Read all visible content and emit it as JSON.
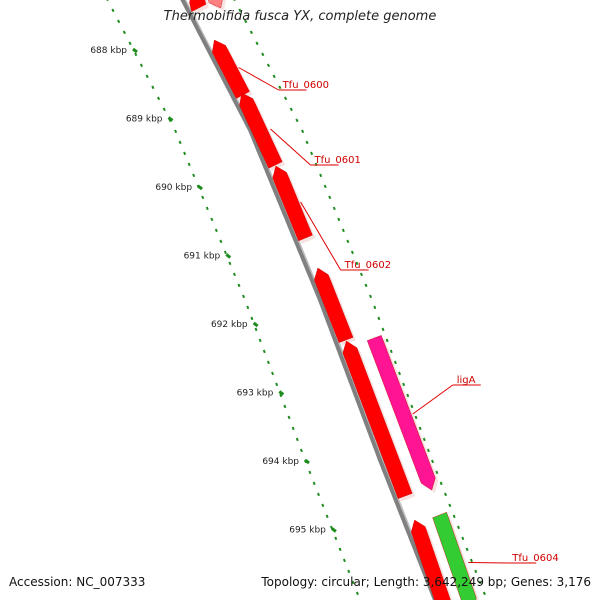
{
  "title": "Thermobifida fusca YX, complete genome",
  "scale": {
    "unit": "kbp",
    "ticks": [
      {
        "label": "688 kbp",
        "kbp": 688
      },
      {
        "label": "689 kbp",
        "kbp": 689
      },
      {
        "label": "690 kbp",
        "kbp": 690
      },
      {
        "label": "691 kbp",
        "kbp": 691
      },
      {
        "label": "692 kbp",
        "kbp": 692
      },
      {
        "label": "693 kbp",
        "kbp": 693
      },
      {
        "label": "694 kbp",
        "kbp": 694
      },
      {
        "label": "695 kbp",
        "kbp": 695
      }
    ]
  },
  "genes": [
    {
      "name": "Tfu_0600",
      "strand": "reverse",
      "color": "#ff0000",
      "labeled": true
    },
    {
      "name": "Tfu_0601",
      "strand": "reverse",
      "color": "#ff0000",
      "labeled": true
    },
    {
      "name": "Tfu_0602",
      "strand": "reverse",
      "color": "#ff0000",
      "labeled": true
    },
    {
      "name": "ligA",
      "strand": "forward",
      "color": "#ff1493",
      "labeled": true
    },
    {
      "name": "Tfu_0604",
      "strand": "forward",
      "color": "#33cc33",
      "labeled": true
    }
  ],
  "colors": {
    "cds": "#ff0000",
    "rna": "#ff1493",
    "other": "#33cc33",
    "backbone": "#808080",
    "ticks": "#1e8c1e",
    "label_line": "#e00000"
  },
  "footer": {
    "accession": "Accession: NC_007333",
    "stats": "Topology: circular; Length: 3,642,249 bp; Genes: 3,176"
  }
}
